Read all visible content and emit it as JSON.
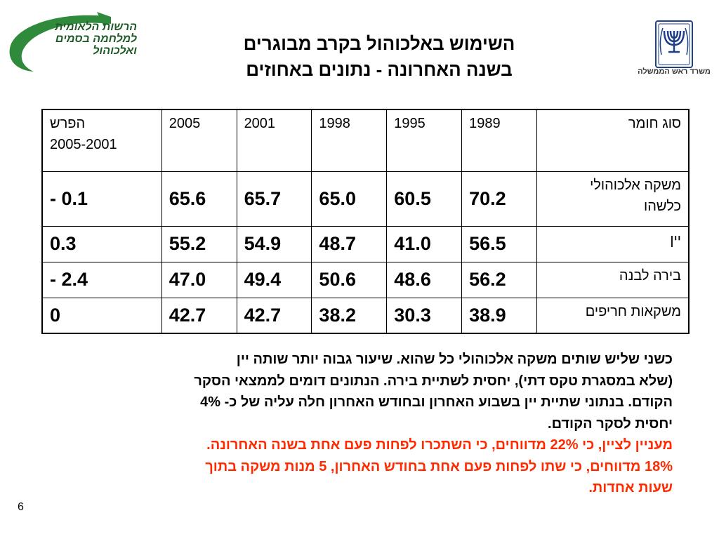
{
  "logo": {
    "lines": [
      "הרשות הלאומית",
      "למלחמה בסמים",
      "ואלכוהול"
    ],
    "color": "#2f8a3c"
  },
  "title": {
    "line1": "השימוש באלכוהול בקרב מבוגרים",
    "line2": "בשנה האחרונה - נתונים באחוזים"
  },
  "emblem": {
    "icon": "menorah-emblem-icon",
    "caption": "משרד ראש הממשלה"
  },
  "table": {
    "headers": [
      "סוג חומר",
      "1989",
      "1995",
      "1998",
      "2001",
      "2005",
      [
        "הפרש",
        "2005-2001"
      ]
    ],
    "rows": [
      {
        "label": [
          "משקה אלכוהולי",
          "כלשהו"
        ],
        "values": [
          "70.2",
          "60.5",
          "65.0",
          "65.7",
          "65.6",
          "0.1 -"
        ]
      },
      {
        "label": [
          "יין"
        ],
        "values": [
          "56.5",
          "41.0",
          "48.7",
          "54.9",
          "55.2",
          "0.3"
        ]
      },
      {
        "label": [
          "בירה לבנה"
        ],
        "values": [
          "56.2",
          "48.6",
          "50.6",
          "49.4",
          "47.0",
          "2.4 -"
        ]
      },
      {
        "label": [
          "משקאות חריפים"
        ],
        "values": [
          "38.9",
          "30.3",
          "38.2",
          "42.7",
          "42.7",
          "0"
        ]
      }
    ]
  },
  "body": {
    "black_lines": [
      "כשני שליש שותים משקה אלכוהולי כל שהוא. שיעור גבוה יותר שותה יין",
      "(שלא במסגרת טקס דתי), יחסית לשתיית בירה. הנתונים דומים לממצאי הסקר",
      "הקודם. בנתוני שתיית יין בשבוע האחרון ובחודש האחרון חלה עליה של כ- 4%",
      "יחסית לסקר הקודם."
    ],
    "red_lines": [
      "מעניין לציין, כי 22% מדווחים, כי השתכרו לפחות פעם אחת בשנה האחרונה.",
      "18% מדווחים, כי שתו לפחות פעם אחת בחודש האחרון, 5 מנות משקה בתוך",
      "שעות אחדות."
    ],
    "red_color": "#ff2a00"
  },
  "page_number": "6"
}
